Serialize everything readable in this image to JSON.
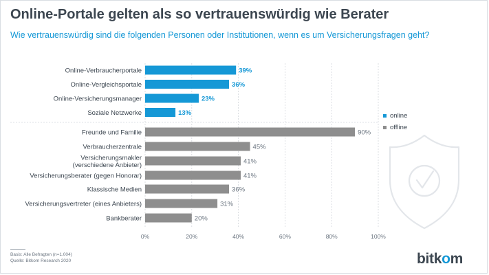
{
  "title": "Online-Portale gelten als so vertrauenswürdig wie Berater",
  "subtitle": "Wie vertrauenswürdig sind die folgenden Personen oder Institutionen, wenn es um Versicherungsfragen geht?",
  "footnote": {
    "basis": "Basis: Alle Befragten (n=1.004)",
    "source": "Quelle: Bitkom Research 2020"
  },
  "logo": {
    "text_main": "bitk",
    "text_accent": "o",
    "text_end": "m"
  },
  "colors": {
    "online": "#1598d6",
    "offline": "#8e8e8e",
    "text": "#3c4650",
    "grid": "#d2d6db"
  },
  "watermark_icon": "shield-check-icon",
  "chart_data": {
    "type": "bar",
    "orientation": "horizontal",
    "title": "Online-Portale gelten als so vertrauenswürdig wie Berater",
    "subtitle": "Wie vertrauenswürdig sind die folgenden Personen oder Institutionen, wenn es um Versicherungsfragen geht?",
    "xlim": [
      0,
      100
    ],
    "xticks": [
      "0%",
      "20%",
      "40%",
      "60%",
      "80%",
      "100%"
    ],
    "grid": "vertical dashed",
    "legend_position": "right",
    "legend": [
      {
        "name": "online",
        "color": "#1598d6"
      },
      {
        "name": "offline",
        "color": "#8e8e8e"
      }
    ],
    "bars": [
      {
        "label": "Online-Verbraucherportale",
        "value": 39,
        "value_label": "39%",
        "group": "online"
      },
      {
        "label": "Online-Vergleichsportale",
        "value": 36,
        "value_label": "36%",
        "group": "online"
      },
      {
        "label": "Online-Versicherungsmanager",
        "value": 23,
        "value_label": "23%",
        "group": "online"
      },
      {
        "label": "Soziale Netzwerke",
        "value": 13,
        "value_label": "13%",
        "group": "online"
      },
      {
        "label": "Freunde und Familie",
        "value": 90,
        "value_label": "90%",
        "group": "offline"
      },
      {
        "label": "Verbraucherzentrale",
        "value": 45,
        "value_label": "45%",
        "group": "offline"
      },
      {
        "label": [
          "Versicherungsmakler",
          "(verschiedene Anbieter)"
        ],
        "value": 41,
        "value_label": "41%",
        "group": "offline"
      },
      {
        "label": "Versicherungsberater (gegen Honorar)",
        "value": 41,
        "value_label": "41%",
        "group": "offline"
      },
      {
        "label": "Klassische Medien",
        "value": 36,
        "value_label": "36%",
        "group": "offline"
      },
      {
        "label": "Versicherungsvertreter (eines Anbieters)",
        "value": 31,
        "value_label": "31%",
        "group": "offline"
      },
      {
        "label": "Bankberater",
        "value": 20,
        "value_label": "20%",
        "group": "offline"
      }
    ]
  }
}
